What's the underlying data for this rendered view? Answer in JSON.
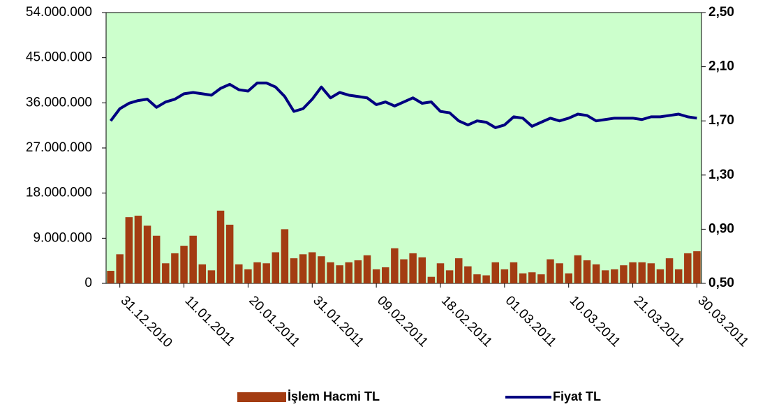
{
  "chart_data": {
    "type": "bar-line",
    "categories": [
      null,
      "31.12.2010",
      null,
      null,
      null,
      null,
      null,
      null,
      "11.01.2011",
      null,
      null,
      null,
      null,
      null,
      null,
      "20.01.2011",
      null,
      null,
      null,
      null,
      null,
      null,
      "31.01.2011",
      null,
      null,
      null,
      null,
      null,
      null,
      "09.02.2011",
      null,
      null,
      null,
      null,
      null,
      null,
      "18.02.2011",
      null,
      null,
      null,
      null,
      null,
      null,
      "01.03.2011",
      null,
      null,
      null,
      null,
      null,
      null,
      "10.03.2011",
      null,
      null,
      null,
      null,
      null,
      null,
      "21.03.2011",
      null,
      null,
      null,
      null,
      null,
      null,
      "30.03.2011"
    ],
    "series": [
      {
        "name": "İşlem Hacmi TL",
        "type": "bar",
        "color": "#a33c12",
        "values": [
          2500000,
          5800000,
          13200000,
          13500000,
          11500000,
          9500000,
          4000000,
          6000000,
          7500000,
          9500000,
          3800000,
          2600000,
          14500000,
          11700000,
          3800000,
          2800000,
          4200000,
          4000000,
          6200000,
          10800000,
          5000000,
          5800000,
          6200000,
          5400000,
          4200000,
          3600000,
          4200000,
          4600000,
          5600000,
          2800000,
          3200000,
          7000000,
          4800000,
          6000000,
          5200000,
          1300000,
          4000000,
          2600000,
          5000000,
          3400000,
          1800000,
          1600000,
          4200000,
          2800000,
          4200000,
          2000000,
          2200000,
          1800000,
          4800000,
          4000000,
          2000000,
          5600000,
          4600000,
          3800000,
          2600000,
          2800000,
          3600000,
          4200000,
          4200000,
          4000000,
          2800000,
          5000000,
          2800000,
          6000000,
          6400000
        ]
      },
      {
        "name": "Fiyat TL",
        "type": "line",
        "axis": "y2",
        "color": "#000080",
        "values": [
          1.7,
          1.79,
          1.83,
          1.85,
          1.86,
          1.8,
          1.84,
          1.86,
          1.9,
          1.91,
          1.9,
          1.89,
          1.94,
          1.97,
          1.93,
          1.92,
          1.98,
          1.98,
          1.95,
          1.88,
          1.77,
          1.79,
          1.86,
          1.95,
          1.87,
          1.91,
          1.89,
          1.88,
          1.87,
          1.82,
          1.84,
          1.81,
          1.84,
          1.87,
          1.83,
          1.84,
          1.77,
          1.76,
          1.7,
          1.67,
          1.7,
          1.69,
          1.65,
          1.67,
          1.73,
          1.72,
          1.66,
          1.69,
          1.72,
          1.7,
          1.72,
          1.75,
          1.74,
          1.7,
          1.71,
          1.72,
          1.72,
          1.72,
          1.71,
          1.73,
          1.73,
          1.74,
          1.75,
          1.73,
          1.72
        ]
      }
    ],
    "ylim": [
      0,
      54000000
    ],
    "yticks": [
      0,
      {
        "value": 9000000,
        "label": "9.000.000"
      },
      {
        "value": 18000000,
        "label": "18.000.000"
      },
      {
        "value": 27000000,
        "label": "27.000.000"
      },
      {
        "value": 36000000,
        "label": "36.000.000"
      },
      {
        "value": 45000000,
        "label": "45.000.000"
      },
      {
        "value": 54000000,
        "label": "54.000.000"
      }
    ],
    "y2lim": [
      0.5,
      2.5
    ],
    "y2ticks": [
      {
        "value": 0.5,
        "label": "0,50"
      },
      {
        "value": 0.9,
        "label": "0,90"
      },
      {
        "value": 1.3,
        "label": "1,30"
      },
      {
        "value": 1.7,
        "label": "1,70"
      },
      {
        "value": 2.1,
        "label": "2,10"
      },
      {
        "value": 2.5,
        "label": "2,50"
      }
    ],
    "plot_background": "#ccffcc"
  }
}
